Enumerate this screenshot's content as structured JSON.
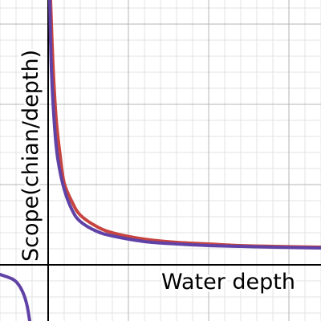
{
  "chart_data": {
    "type": "line",
    "xlabel": "Water depth",
    "ylabel": "Scope(chian/depth)",
    "xlim": [
      -3,
      17
    ],
    "ylim": [
      -3.5,
      16.5
    ],
    "grid": true,
    "series": [
      {
        "color": "#c74440",
        "points": [
          [
            0.15,
            16.5
          ],
          [
            0.3,
            12.5
          ],
          [
            0.5,
            9.1
          ],
          [
            0.75,
            6.8
          ],
          [
            1.0,
            5.1
          ],
          [
            1.5,
            3.9
          ],
          [
            2,
            3.1
          ],
          [
            3,
            2.4
          ],
          [
            4,
            2.0
          ],
          [
            6,
            1.6
          ],
          [
            8,
            1.4
          ],
          [
            10,
            1.3
          ],
          [
            12,
            1.2
          ],
          [
            14,
            1.15
          ],
          [
            17,
            1.1
          ]
        ]
      },
      {
        "color": "#6042a6",
        "points": [
          [
            -3,
            -0.6
          ],
          [
            -2.2,
            -0.9
          ],
          [
            -1.8,
            -1.3
          ],
          [
            -1.5,
            -1.9
          ],
          [
            -1.3,
            -2.6
          ],
          [
            -1.15,
            -3.5
          ],
          [
            0.1,
            16.5
          ],
          [
            0.2,
            12.2
          ],
          [
            0.4,
            8.6
          ],
          [
            0.6,
            6.6
          ],
          [
            1.0,
            4.7
          ],
          [
            1.5,
            3.4
          ],
          [
            2,
            2.7
          ],
          [
            3,
            2.1
          ],
          [
            4,
            1.8
          ],
          [
            6,
            1.45
          ],
          [
            8,
            1.3
          ],
          [
            10,
            1.2
          ],
          [
            12,
            1.15
          ],
          [
            14,
            1.1
          ],
          [
            17,
            1.05
          ]
        ]
      }
    ]
  }
}
